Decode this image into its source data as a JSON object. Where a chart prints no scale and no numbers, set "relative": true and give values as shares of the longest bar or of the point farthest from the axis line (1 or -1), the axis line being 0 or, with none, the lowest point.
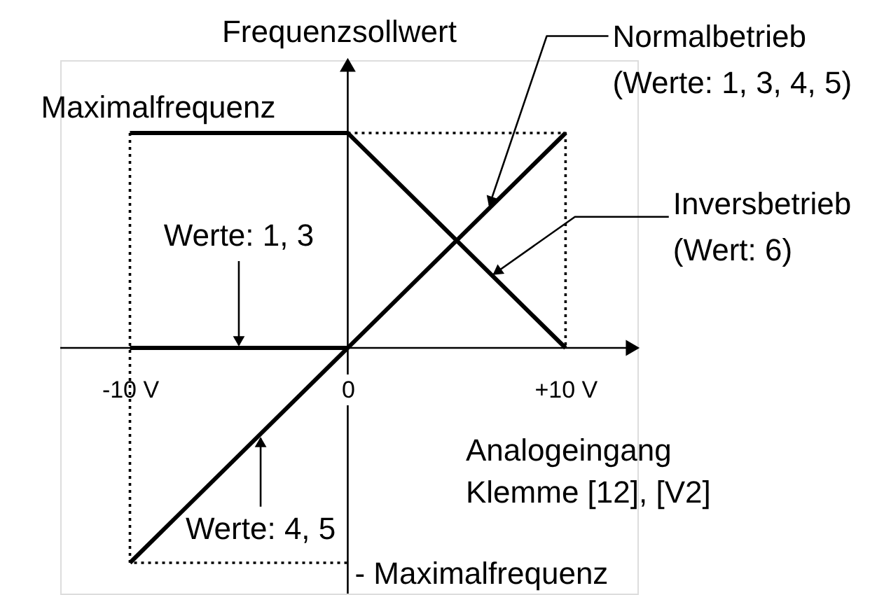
{
  "chart_data": {
    "type": "line",
    "relative": true,
    "ylabel": "Frequenzsollwert",
    "xlabel": "Analogeingang\nKlemme [12], [V2]",
    "xlim": [
      -13.2,
      13.3
    ],
    "xticks": [
      {
        "value": -10,
        "label": "-10 V"
      },
      {
        "value": 0,
        "label": "0"
      },
      {
        "value": 10,
        "label": "+10 V"
      }
    ],
    "line_style": "solid",
    "series": [
      {
        "color": "#000000",
        "x": [
          -10,
          10
        ],
        "values": [
          -1,
          1
        ]
      },
      {
        "color": "#000000",
        "x": [
          -10,
          0
        ],
        "values": [
          0,
          0
        ]
      },
      {
        "color": "#000000",
        "x": [
          -10,
          0,
          10
        ],
        "values": [
          1,
          1,
          0
        ]
      },
      {
        "color": "#000000",
        "x": [
          0,
          10,
          10
        ],
        "values": [
          1,
          1,
          0
        ],
        "line_style": "dotted"
      },
      {
        "color": "#000000",
        "x": [
          -10,
          -10,
          0
        ],
        "values": [
          1,
          -1,
          -1
        ],
        "line_style": "dotted"
      }
    ],
    "annotations": [
      {
        "text": "Normalbetrieb\n(Werte: 1, 3, 4, 5)",
        "x": 6.5,
        "y": 0.65
      },
      {
        "text": "Maximalfrequenz",
        "x": -10,
        "y": 1
      },
      {
        "text": "Inversbetrieb\n(Wert: 6)",
        "x": 6.7,
        "y": 0.33
      },
      {
        "text": "Werte: 1, 3",
        "x": -5,
        "y": 0
      },
      {
        "text": "Werte: 4, 5",
        "x": -4,
        "y": -0.4
      },
      {
        "text": "- Maximalfrequenz",
        "x": 0,
        "y": -1
      }
    ]
  }
}
